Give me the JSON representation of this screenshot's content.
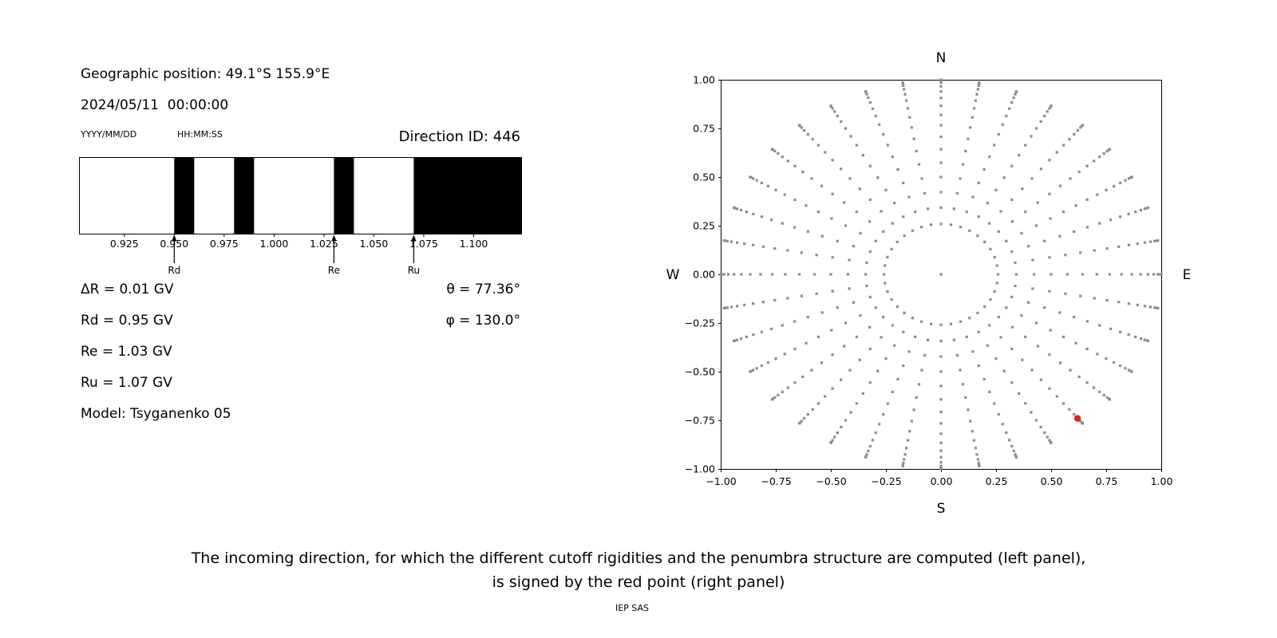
{
  "left_panel": {
    "geo_position": "Geographic position: 49.1°S 155.9°E",
    "datetime": "2024/05/11  00:00:00",
    "date_format": "YYYY/MM/DD",
    "time_format": "HH:MM:SS",
    "direction_id": "Direction ID: 446",
    "info_left": [
      "ΔR = 0.01 GV",
      "Rd = 0.95 GV",
      "Re = 1.03 GV",
      "Ru = 1.07 GV",
      "Model: Tsyganenko 05"
    ],
    "info_right": [
      "θ = 77.36°",
      "φ = 130.0°"
    ]
  },
  "caption": {
    "line1": "The incoming direction, for which the different cutoff rigidities and the penumbra structure are computed (left panel),",
    "line2": "is signed by the red point (right panel)",
    "credit": "IEP SAS"
  },
  "chart_data": [
    {
      "name": "penumbra-structure",
      "type": "bar",
      "description": "Cutoff rigidity penumbra: black bands mark forbidden rigidity intervals (GV)",
      "x_range": [
        0.9025,
        1.124
      ],
      "x_ticks": [
        0.925,
        0.95,
        0.975,
        1.0,
        1.025,
        1.05,
        1.075,
        1.1
      ],
      "x_tick_labels": [
        "0.925",
        "0.950",
        "0.975",
        "1.000",
        "1.025",
        "1.050",
        "1.075",
        "1.100"
      ],
      "forbidden_bands": [
        [
          0.95,
          0.96
        ],
        [
          0.98,
          0.99
        ],
        [
          1.03,
          1.04
        ],
        [
          1.07,
          1.124
        ]
      ],
      "markers": [
        {
          "label": "Rd",
          "value": 0.95
        },
        {
          "label": "Re",
          "value": 1.03
        },
        {
          "label": "Ru",
          "value": 1.07
        }
      ],
      "band_color": "#000000"
    },
    {
      "name": "incoming-direction-map",
      "type": "scatter",
      "compass_labels": {
        "top": "N",
        "bottom": "S",
        "left": "W",
        "right": "E"
      },
      "xlim": [
        -1,
        1
      ],
      "ylim": [
        -1,
        1
      ],
      "x_ticks": [
        -1.0,
        -0.75,
        -0.5,
        -0.25,
        0.0,
        0.25,
        0.5,
        0.75,
        1.0
      ],
      "x_tick_labels": [
        "−1.00",
        "−0.75",
        "−0.50",
        "−0.25",
        "0.00",
        "0.25",
        "0.50",
        "0.75",
        "1.00"
      ],
      "y_ticks": [
        1.0,
        0.75,
        0.5,
        0.25,
        0.0,
        -0.25,
        -0.5,
        -0.75,
        -1.0
      ],
      "y_tick_labels": [
        "1.00",
        "0.75",
        "0.50",
        "0.25",
        "0.00",
        "−0.25",
        "−0.50",
        "−0.75",
        "−1.00"
      ],
      "grid_dots": {
        "azimuth_start_deg": 0,
        "azimuth_step_deg": 10,
        "zenith_start_deg": 15,
        "zenith_end_deg": 90,
        "zenith_step_deg": 5,
        "radius_mapping": "sin(zenith)",
        "include_center": true
      },
      "dot_color": "#8c8c8c",
      "red_point": {
        "x": 0.62,
        "y": -0.74,
        "theta_deg": 77.36,
        "phi_deg": 130.0,
        "color": "#e02020"
      }
    }
  ]
}
